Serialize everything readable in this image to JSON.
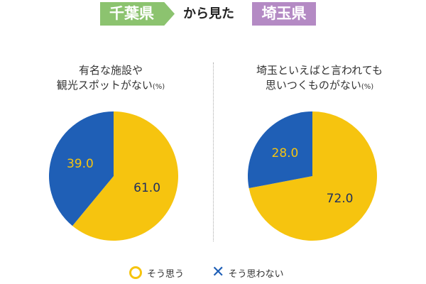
{
  "header": {
    "left_tag": "千葉県",
    "middle_text": "から見た",
    "right_tag": "埼玉県"
  },
  "colors": {
    "yes": "#f6c40f",
    "no": "#1f5fb6",
    "left_tag": "#8cc36f",
    "right_tag": "#b48ac4",
    "slice_label": "#1f2f5f"
  },
  "legend": {
    "yes_label": "そう思う",
    "no_label": "そう思わない",
    "yes_icon": "circle-icon",
    "no_icon": "cross-icon"
  },
  "chart_data": [
    {
      "type": "pie",
      "title_line1": "有名な施設や",
      "title_line2": "観光スポットがない",
      "unit": "(%)",
      "categories": [
        "そう思う",
        "そう思わない"
      ],
      "values": [
        61.0,
        39.0
      ],
      "labels": [
        "61.0",
        "39.0"
      ]
    },
    {
      "type": "pie",
      "title_line1": "埼玉といえばと言われても",
      "title_line2": "思いつくものがない",
      "unit": "(%)",
      "categories": [
        "そう思う",
        "そう思わない"
      ],
      "values": [
        72.0,
        28.0
      ],
      "labels": [
        "72.0",
        "28.0"
      ]
    }
  ]
}
